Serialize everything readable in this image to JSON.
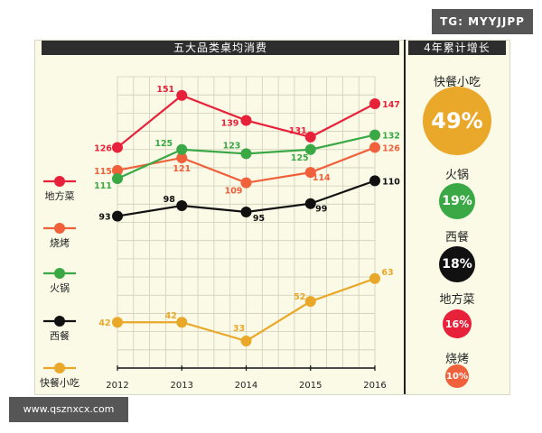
{
  "badges": {
    "top_right": "TG: MYYJJPP",
    "bottom_left": "www.qsznxcx.com"
  },
  "chart_data": [
    {
      "type": "line",
      "title": "五大品类桌均消费",
      "x": [
        "2012",
        "2013",
        "2014",
        "2015",
        "2016"
      ],
      "ylim": [
        20,
        160
      ],
      "grid": true,
      "legend_position": "left",
      "series": [
        {
          "name": "地方菜",
          "color": "#e8213a",
          "values": [
            126,
            151,
            139,
            131,
            147
          ]
        },
        {
          "name": "烧烤",
          "color": "#f0603a",
          "values": [
            115,
            121,
            109,
            114,
            126
          ]
        },
        {
          "name": "火锅",
          "color": "#3aa844",
          "values": [
            111,
            125,
            123,
            125,
            132
          ]
        },
        {
          "name": "西餐",
          "color": "#111111",
          "values": [
            93,
            98,
            95,
            99,
            110
          ]
        },
        {
          "name": "快餐小吃",
          "color": "#eaa82a",
          "values": [
            42,
            42,
            33,
            52,
            63
          ]
        }
      ]
    },
    {
      "type": "bubble",
      "title": "4年累计增长",
      "items": [
        {
          "name": "快餐小吃",
          "label": "49%",
          "value": 49,
          "color": "#eaa82a"
        },
        {
          "name": "火锅",
          "label": "19%",
          "value": 19,
          "color": "#3aa844"
        },
        {
          "name": "西餐",
          "label": "18%",
          "value": 18,
          "color": "#111111"
        },
        {
          "name": "地方菜",
          "label": "16%",
          "value": 16,
          "color": "#e8213a"
        },
        {
          "name": "烧烤",
          "label": "10%",
          "value": 10,
          "color": "#f0603a"
        }
      ]
    }
  ]
}
